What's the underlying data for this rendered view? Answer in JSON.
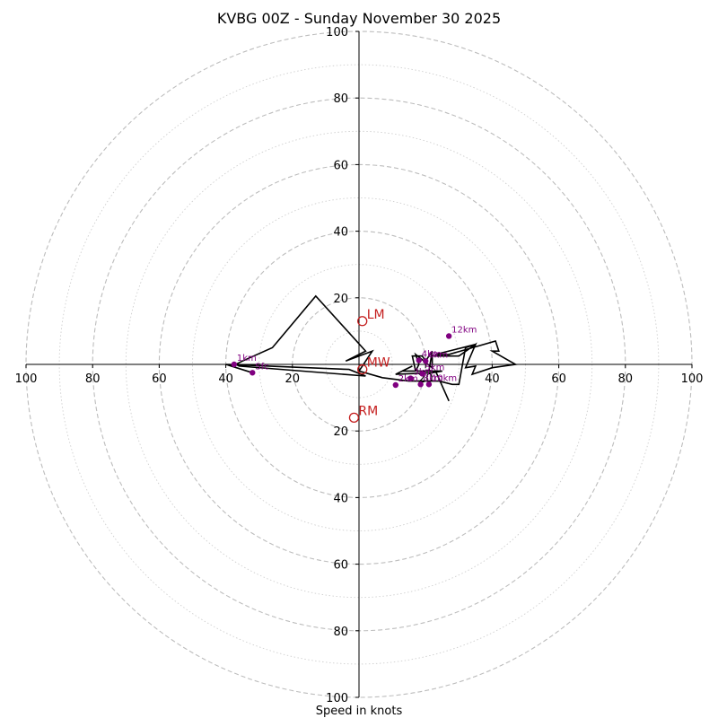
{
  "chart_data": {
    "type": "hodograph",
    "title": "KVBG 00Z - Sunday November 30 2025",
    "xlabel": "Speed in knots",
    "rings_major": [
      20,
      40,
      60,
      80,
      100
    ],
    "rings_minor": [
      10,
      30,
      50,
      70,
      90
    ],
    "x_ticks": [
      "100",
      "80",
      "60",
      "40",
      "20",
      "20",
      "40",
      "60",
      "80",
      "100"
    ],
    "y_ticks": [
      "100",
      "80",
      "60",
      "40",
      "20",
      "20",
      "40",
      "60",
      "80",
      "100"
    ],
    "range": [
      -100,
      100
    ],
    "units": "knots",
    "trace": {
      "x": [
        -32,
        -40,
        -3,
        2,
        -36,
        -37,
        -35,
        -26,
        -13,
        2,
        -4,
        4,
        1,
        0,
        7,
        15,
        24,
        28,
        30,
        32,
        35,
        23,
        27,
        41,
        42,
        40,
        47,
        40,
        34,
        35,
        32,
        35,
        30,
        22,
        22,
        17,
        18,
        17,
        25,
        22,
        11,
        16,
        13,
        17,
        16,
        19,
        20,
        22,
        21,
        23,
        27
      ],
      "y": [
        -2.5,
        0,
        -1.5,
        -3.5,
        -0.5,
        0,
        1,
        5,
        20.5,
        4,
        1,
        4,
        -0.5,
        -2,
        -4,
        -5,
        -5,
        -6,
        -6,
        5,
        6,
        3,
        3,
        7,
        4,
        4,
        0,
        -1,
        -3,
        -0.5,
        -1,
        6,
        2.5,
        2.5,
        -1,
        3,
        0,
        -2,
        -2,
        -2.5,
        -3,
        -0.5,
        -2,
        -2,
        2.5,
        2.5,
        1,
        4,
        -2,
        -2,
        -11
      ]
    },
    "height_markers": [
      {
        "label": "Sfc",
        "x": -32,
        "y": -2.5
      },
      {
        "label": "1km",
        "x": -37.5,
        "y": 0
      },
      {
        "label": "2km",
        "x": 11,
        "y": -6.2
      },
      {
        "label": "3km",
        "x": 15.5,
        "y": -4.2
      },
      {
        "label": "4km",
        "x": 18,
        "y": 1.2
      },
      {
        "label": "5km",
        "x": 19,
        "y": -2.8
      },
      {
        "label": "6km",
        "x": 20,
        "y": 1
      },
      {
        "label": "8km",
        "x": 18.5,
        "y": -6
      },
      {
        "label": "10km",
        "x": 21,
        "y": -6
      },
      {
        "label": "12km",
        "x": 27,
        "y": 8.5
      }
    ],
    "storm_motions": [
      {
        "label": "LM",
        "x": 1,
        "y": 13
      },
      {
        "label": "MW",
        "x": 1,
        "y": -1.5
      },
      {
        "label": "RM",
        "x": -1.5,
        "y": -16
      }
    ]
  }
}
